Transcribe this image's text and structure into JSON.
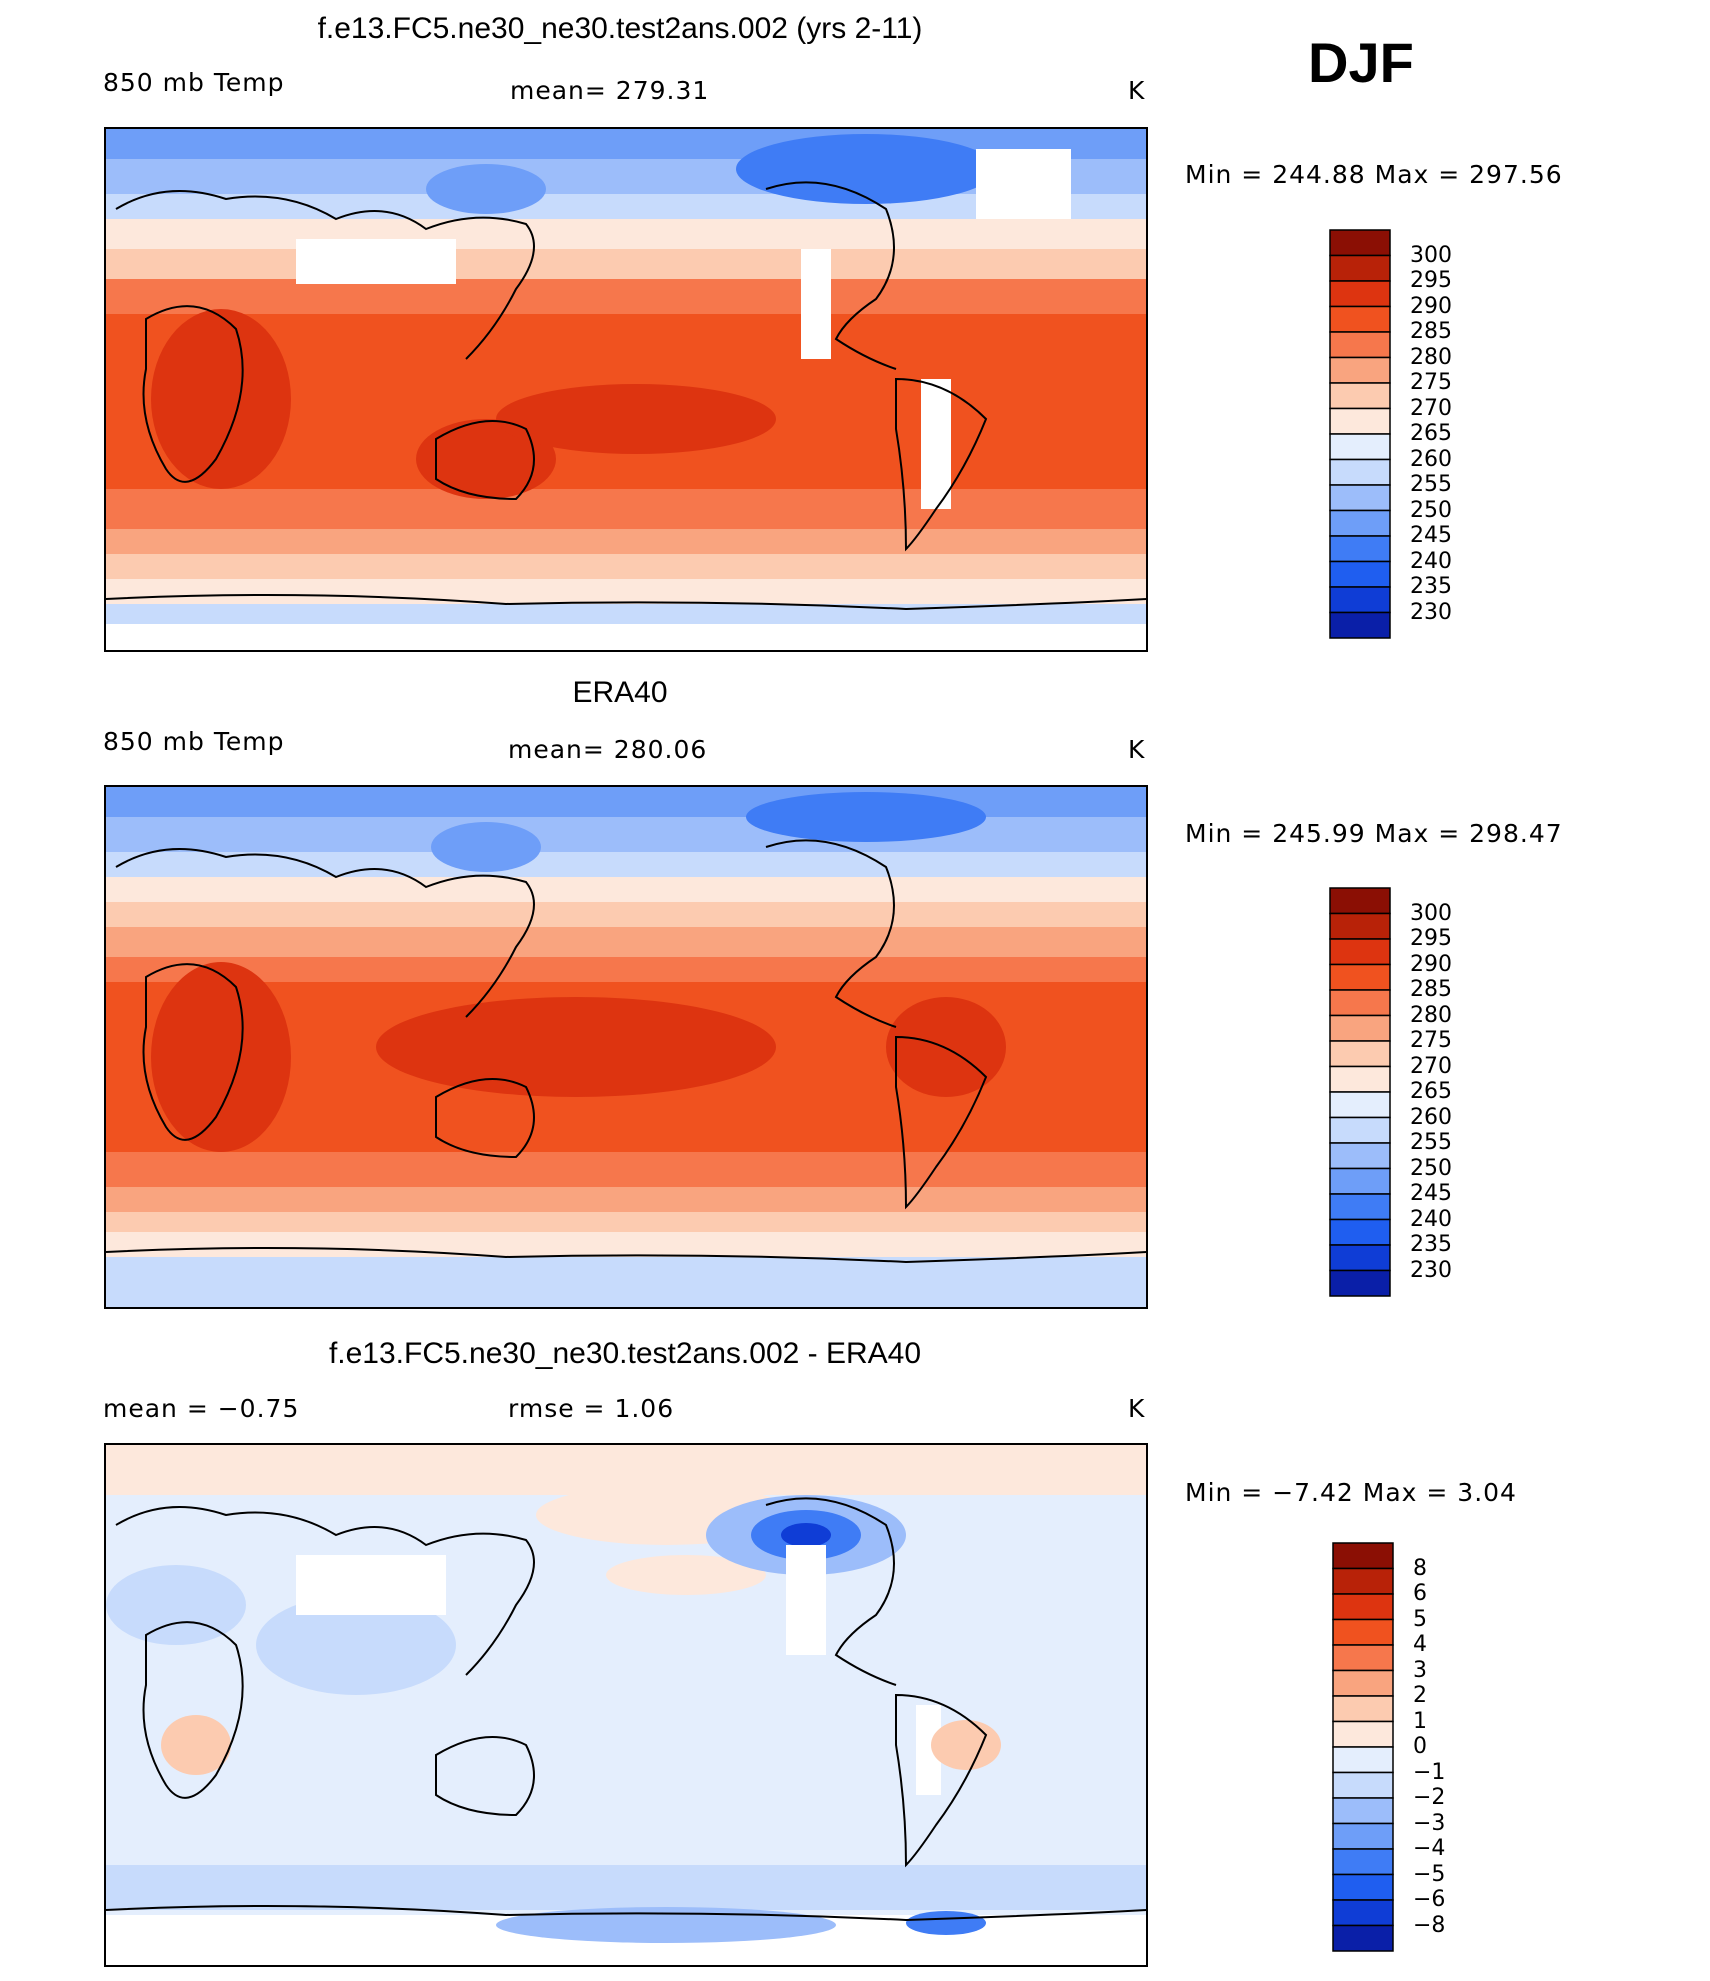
{
  "season": "DJF",
  "colors": {
    "abs_levels": [
      "#0b0b7a",
      "#0a1fa8",
      "#0f3dd6",
      "#1f5ef0",
      "#3f7cf5",
      "#6e9ef8",
      "#9cbdfa",
      "#c7dbfc",
      "#e4eefd",
      "#fde8dc",
      "#fccbb0",
      "#f9a47f",
      "#f6774c",
      "#f0521f",
      "#dd3410",
      "#b82208",
      "#8b0f04"
    ],
    "diff_levels": [
      "#0b0b7a",
      "#0a1fa8",
      "#0f3dd6",
      "#1f5ef0",
      "#3f7cf5",
      "#6e9ef8",
      "#9cbdfa",
      "#c7dbfc",
      "#e4eefd",
      "#fde8dc",
      "#fccbb0",
      "#f9a47f",
      "#f6774c",
      "#f0521f",
      "#dd3410",
      "#b82208",
      "#8b0f04"
    ]
  },
  "panels": [
    {
      "title": "f.e13.FC5.ne30_ne30.test2ans.002 (yrs 2-11)",
      "left_label": "850 mb Temp",
      "center_label": "mean=  279.31",
      "units": "K",
      "minmax": "Min  =  244.88  Max  =  297.56",
      "colorbar_labels": [
        "300",
        "295",
        "290",
        "285",
        "280",
        "275",
        "270",
        "265",
        "260",
        "255",
        "250",
        "245",
        "240",
        "235",
        "230"
      ],
      "kind": "model"
    },
    {
      "title": "ERA40",
      "left_label": "850 mb Temp",
      "center_label": "mean=  280.06",
      "units": "K",
      "minmax": "Min  =  245.99  Max  =  298.47",
      "colorbar_labels": [
        "300",
        "295",
        "290",
        "285",
        "280",
        "275",
        "270",
        "265",
        "260",
        "255",
        "250",
        "245",
        "240",
        "235",
        "230"
      ],
      "kind": "obs"
    },
    {
      "title": "f.e13.FC5.ne30_ne30.test2ans.002 - ERA40",
      "left_label": "mean  =     −0.75",
      "center_label": "rmse  =     1.06",
      "units": "K",
      "minmax": "Min  =    −7.42  Max  =     3.04",
      "colorbar_labels": [
        "8",
        "6",
        "5",
        "4",
        "3",
        "2",
        "1",
        "0",
        "−1",
        "−2",
        "−3",
        "−4",
        "−5",
        "−6",
        "−8"
      ],
      "kind": "diff"
    }
  ]
}
